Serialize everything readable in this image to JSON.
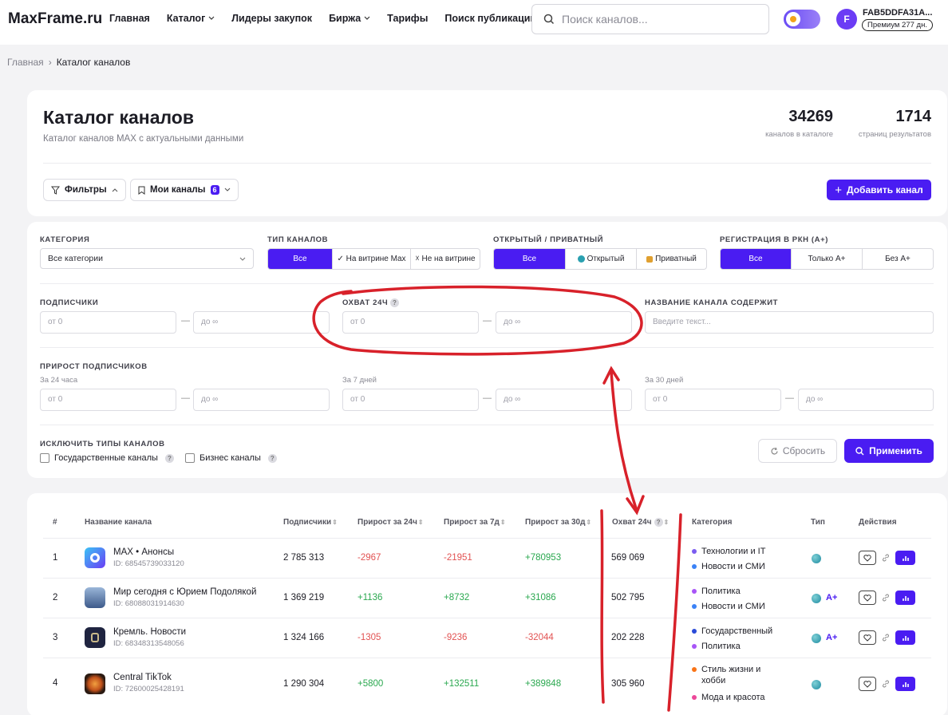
{
  "header": {
    "logo": "MaxFrame.ru",
    "nav": [
      {
        "label": "Главная",
        "dropdown": false
      },
      {
        "label": "Каталог",
        "dropdown": true
      },
      {
        "label": "Лидеры закупок",
        "dropdown": false
      },
      {
        "label": "Биржа",
        "dropdown": true
      },
      {
        "label": "Тарифы",
        "dropdown": false
      },
      {
        "label": "Поиск публикаций",
        "dropdown": false
      }
    ],
    "search_placeholder": "Поиск каналов...",
    "user_initial": "F",
    "user_name": "FAB5DDFA31A...",
    "premium_badge": "Премиум 277 дн."
  },
  "breadcrumb": {
    "home": "Главная",
    "current": "Каталог каналов"
  },
  "catalog": {
    "title": "Каталог каналов",
    "subtitle": "Каталог каналов MAX с актуальными данными",
    "stats": [
      {
        "value": "34269",
        "label": "каналов в каталоге"
      },
      {
        "value": "1714",
        "label": "страниц результатов"
      }
    ],
    "filters_button": "Фильтры",
    "my_channels_button": "Мои каналы",
    "my_channels_count": "6",
    "add_channel_button": "Добавить канал"
  },
  "filters": {
    "category": {
      "label": "КАТЕГОРИЯ",
      "value": "Все категории"
    },
    "channel_type": {
      "label": "ТИП КАНАЛОВ",
      "options": [
        "Все",
        "✓ На витрине Max",
        "☓ Не на витрине"
      ],
      "selected": 0
    },
    "open_private": {
      "label": "ОТКРЫТЫЙ / ПРИВАТНЫЙ",
      "options": [
        "Все",
        "Открытый",
        "Приватный"
      ],
      "selected": 0
    },
    "rkn": {
      "label": "РЕГИСТРАЦИЯ В РКН (А+)",
      "options": [
        "Все",
        "Только А+",
        "Без А+"
      ],
      "selected": 0
    },
    "subscribers": {
      "label": "ПОДПИСЧИКИ",
      "from": "от 0",
      "to": "до ∞"
    },
    "reach": {
      "label": "ОХВАТ 24Ч",
      "from": "от 0",
      "to": "до ∞"
    },
    "name_contains": {
      "label": "НАЗВАНИЕ КАНАЛА СОДЕРЖИТ",
      "placeholder": "Введите текст..."
    },
    "growth": {
      "label": "ПРИРОСТ ПОДПИСЧИКОВ",
      "periods": [
        {
          "label": "За 24 часа",
          "from": "от 0",
          "to": "до ∞"
        },
        {
          "label": "За 7 дней",
          "from": "от 0",
          "to": "до ∞"
        },
        {
          "label": "За 30 дней",
          "from": "от 0",
          "to": "до ∞"
        }
      ]
    },
    "exclude": {
      "label": "ИСКЛЮЧИТЬ ТИПЫ КАНАЛОВ",
      "options": [
        "Государственные каналы",
        "Бизнес каналы"
      ]
    },
    "reset_button": "Сбросить",
    "apply_button": "Применить"
  },
  "table": {
    "headers": [
      "#",
      "Название канала",
      "Подписчики",
      "Прирост за 24ч",
      "Прирост за 7д",
      "Прирост за 30д",
      "Охват 24ч",
      "Категория",
      "Тип",
      "Действия"
    ],
    "rows": [
      {
        "n": "1",
        "name": "MAX • Анонсы",
        "id": "ID: 68545739033120",
        "subs": "2 785 313",
        "g24": "-2967",
        "g7": "-21951",
        "g30": "+780953",
        "reach": "569 069",
        "categories": [
          {
            "name": "Технологии и IT",
            "color": "#7b5cf0"
          },
          {
            "name": "Новости и СМИ",
            "color": "#3b82f6"
          }
        ],
        "aplus": "",
        "logo_color": "#5b7cf5"
      },
      {
        "n": "2",
        "name": "Мир сегодня с Юрием Подолякой",
        "id": "ID: 68088031914630",
        "subs": "1 369 219",
        "g24": "+1136",
        "g7": "+8732",
        "g30": "+31086",
        "reach": "502 795",
        "categories": [
          {
            "name": "Политика",
            "color": "#a855f7"
          },
          {
            "name": "Новости и СМИ",
            "color": "#3b82f6"
          }
        ],
        "aplus": "A+",
        "logo_color": "#3d5a8a"
      },
      {
        "n": "3",
        "name": "Кремль. Новости",
        "id": "ID: 68348313548056",
        "subs": "1 324 166",
        "g24": "-1305",
        "g7": "-9236",
        "g30": "-32044",
        "reach": "202 228",
        "categories": [
          {
            "name": "Государственный",
            "color": "#2b4bd8"
          },
          {
            "name": "Политика",
            "color": "#a855f7"
          }
        ],
        "aplus": "A+",
        "logo_color": "#1f2440"
      },
      {
        "n": "4",
        "name": "Central TikTok",
        "id": "ID: 72600025428191",
        "subs": "1 290 304",
        "g24": "+5800",
        "g7": "+132511",
        "g30": "+389848",
        "reach": "305 960",
        "categories": [
          {
            "name": "Стиль жизни и\nхобби",
            "color": "#f97316"
          },
          {
            "name": "Мода и красота",
            "color": "#ec4899"
          }
        ],
        "aplus": "",
        "logo_color": "#2a1a12"
      }
    ]
  },
  "colors": {
    "accent": "#4a1cf2",
    "negative": "#e25252",
    "positive": "#2aa84f",
    "annotation": "#d8212a"
  }
}
